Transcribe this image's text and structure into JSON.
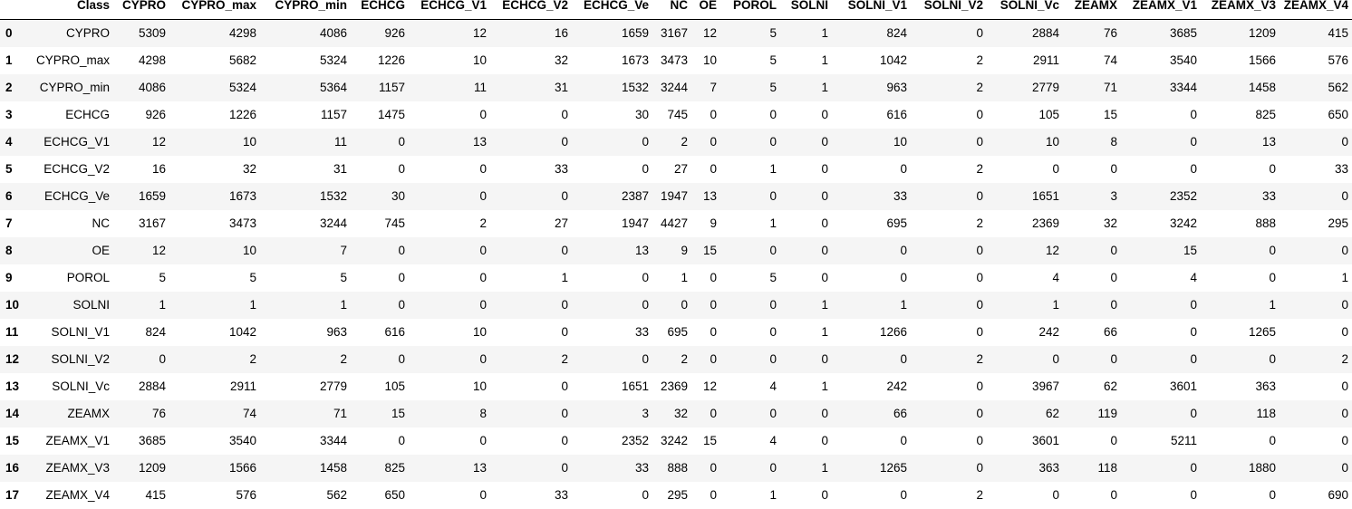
{
  "table": {
    "columns": [
      "",
      "Class",
      "CYPRO",
      "CYPRO_max",
      "CYPRO_min",
      "ECHCG",
      "ECHCG_V1",
      "ECHCG_V2",
      "ECHCG_Ve",
      "NC",
      "OE",
      "POROL",
      "SOLNI",
      "SOLNI_V1",
      "SOLNI_V2",
      "SOLNI_Vc",
      "ZEAMX",
      "ZEAMX_V1",
      "ZEAMX_V3",
      "ZEAMX_V4"
    ],
    "rows": [
      {
        "index": "0",
        "cells": [
          "CYPRO",
          "5309",
          "4298",
          "4086",
          "926",
          "12",
          "16",
          "1659",
          "3167",
          "12",
          "5",
          "1",
          "824",
          "0",
          "2884",
          "76",
          "3685",
          "1209",
          "415"
        ]
      },
      {
        "index": "1",
        "cells": [
          "CYPRO_max",
          "4298",
          "5682",
          "5324",
          "1226",
          "10",
          "32",
          "1673",
          "3473",
          "10",
          "5",
          "1",
          "1042",
          "2",
          "2911",
          "74",
          "3540",
          "1566",
          "576"
        ]
      },
      {
        "index": "2",
        "cells": [
          "CYPRO_min",
          "4086",
          "5324",
          "5364",
          "1157",
          "11",
          "31",
          "1532",
          "3244",
          "7",
          "5",
          "1",
          "963",
          "2",
          "2779",
          "71",
          "3344",
          "1458",
          "562"
        ]
      },
      {
        "index": "3",
        "cells": [
          "ECHCG",
          "926",
          "1226",
          "1157",
          "1475",
          "0",
          "0",
          "30",
          "745",
          "0",
          "0",
          "0",
          "616",
          "0",
          "105",
          "15",
          "0",
          "825",
          "650"
        ]
      },
      {
        "index": "4",
        "cells": [
          "ECHCG_V1",
          "12",
          "10",
          "11",
          "0",
          "13",
          "0",
          "0",
          "2",
          "0",
          "0",
          "0",
          "10",
          "0",
          "10",
          "8",
          "0",
          "13",
          "0"
        ]
      },
      {
        "index": "5",
        "cells": [
          "ECHCG_V2",
          "16",
          "32",
          "31",
          "0",
          "0",
          "33",
          "0",
          "27",
          "0",
          "1",
          "0",
          "0",
          "2",
          "0",
          "0",
          "0",
          "0",
          "33"
        ]
      },
      {
        "index": "6",
        "cells": [
          "ECHCG_Ve",
          "1659",
          "1673",
          "1532",
          "30",
          "0",
          "0",
          "2387",
          "1947",
          "13",
          "0",
          "0",
          "33",
          "0",
          "1651",
          "3",
          "2352",
          "33",
          "0"
        ]
      },
      {
        "index": "7",
        "cells": [
          "NC",
          "3167",
          "3473",
          "3244",
          "745",
          "2",
          "27",
          "1947",
          "4427",
          "9",
          "1",
          "0",
          "695",
          "2",
          "2369",
          "32",
          "3242",
          "888",
          "295"
        ]
      },
      {
        "index": "8",
        "cells": [
          "OE",
          "12",
          "10",
          "7",
          "0",
          "0",
          "0",
          "13",
          "9",
          "15",
          "0",
          "0",
          "0",
          "0",
          "12",
          "0",
          "15",
          "0",
          "0"
        ]
      },
      {
        "index": "9",
        "cells": [
          "POROL",
          "5",
          "5",
          "5",
          "0",
          "0",
          "1",
          "0",
          "1",
          "0",
          "5",
          "0",
          "0",
          "0",
          "4",
          "0",
          "4",
          "0",
          "1"
        ]
      },
      {
        "index": "10",
        "cells": [
          "SOLNI",
          "1",
          "1",
          "1",
          "0",
          "0",
          "0",
          "0",
          "0",
          "0",
          "0",
          "1",
          "1",
          "0",
          "1",
          "0",
          "0",
          "1",
          "0"
        ]
      },
      {
        "index": "11",
        "cells": [
          "SOLNI_V1",
          "824",
          "1042",
          "963",
          "616",
          "10",
          "0",
          "33",
          "695",
          "0",
          "0",
          "1",
          "1266",
          "0",
          "242",
          "66",
          "0",
          "1265",
          "0"
        ]
      },
      {
        "index": "12",
        "cells": [
          "SOLNI_V2",
          "0",
          "2",
          "2",
          "0",
          "0",
          "2",
          "0",
          "2",
          "0",
          "0",
          "0",
          "0",
          "2",
          "0",
          "0",
          "0",
          "0",
          "2"
        ]
      },
      {
        "index": "13",
        "cells": [
          "SOLNI_Vc",
          "2884",
          "2911",
          "2779",
          "105",
          "10",
          "0",
          "1651",
          "2369",
          "12",
          "4",
          "1",
          "242",
          "0",
          "3967",
          "62",
          "3601",
          "363",
          "0"
        ]
      },
      {
        "index": "14",
        "cells": [
          "ZEAMX",
          "76",
          "74",
          "71",
          "15",
          "8",
          "0",
          "3",
          "32",
          "0",
          "0",
          "0",
          "66",
          "0",
          "62",
          "119",
          "0",
          "118",
          "0"
        ]
      },
      {
        "index": "15",
        "cells": [
          "ZEAMX_V1",
          "3685",
          "3540",
          "3344",
          "0",
          "0",
          "0",
          "2352",
          "3242",
          "15",
          "4",
          "0",
          "0",
          "0",
          "3601",
          "0",
          "5211",
          "0",
          "0"
        ]
      },
      {
        "index": "16",
        "cells": [
          "ZEAMX_V3",
          "1209",
          "1566",
          "1458",
          "825",
          "13",
          "0",
          "33",
          "888",
          "0",
          "0",
          "1",
          "1265",
          "0",
          "363",
          "118",
          "0",
          "1880",
          "0"
        ]
      },
      {
        "index": "17",
        "cells": [
          "ZEAMX_V4",
          "415",
          "576",
          "562",
          "650",
          "0",
          "33",
          "0",
          "295",
          "0",
          "1",
          "0",
          "0",
          "2",
          "0",
          "0",
          "0",
          "0",
          "690"
        ]
      }
    ]
  }
}
